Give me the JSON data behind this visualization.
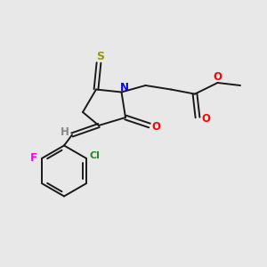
{
  "background_color": "#e8e8e8",
  "bond_color": "#1a1a1a",
  "lw": 1.4,
  "fig_width": 3.0,
  "fig_height": 3.0,
  "dpi": 100,
  "colors": {
    "S": "#999900",
    "N": "#0000FF",
    "O": "#FF0000",
    "F": "#FF00FF",
    "Cl": "#228B22",
    "H": "#888888",
    "C": "#1a1a1a"
  }
}
